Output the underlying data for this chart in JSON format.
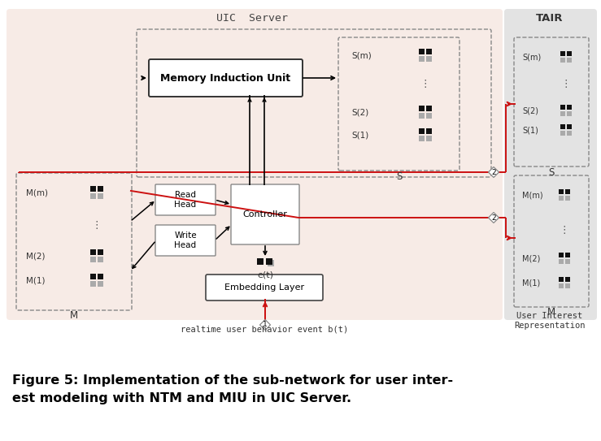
{
  "fig_width": 7.39,
  "fig_height": 5.43,
  "dpi": 100,
  "bg_color": "#ffffff",
  "uic_bg_color": "#f7ebe6",
  "tair_bg_color": "#e3e3e3",
  "caption_line1": "Figure 5: Implementation of the sub-network for user inter-",
  "caption_line2": "est modeling with NTM and MIU in UIC Server.",
  "uic_label": "UIC  Server",
  "tair_label": "TAIR",
  "realtime_label": "realtime user behavior event b(t)",
  "user_interest_label": "User Interest\nRepresentation",
  "red_color": "#cc1111",
  "dark_color": "#222222",
  "box_edge_color": "#444444",
  "dashed_edge_color": "#666666"
}
